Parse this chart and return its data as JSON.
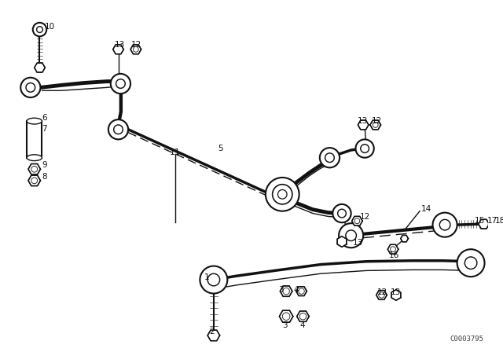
{
  "bg_color": "#ffffff",
  "fig_width": 6.4,
  "fig_height": 4.48,
  "dpi": 100,
  "watermark": "C0003795",
  "line_color": "#111111"
}
